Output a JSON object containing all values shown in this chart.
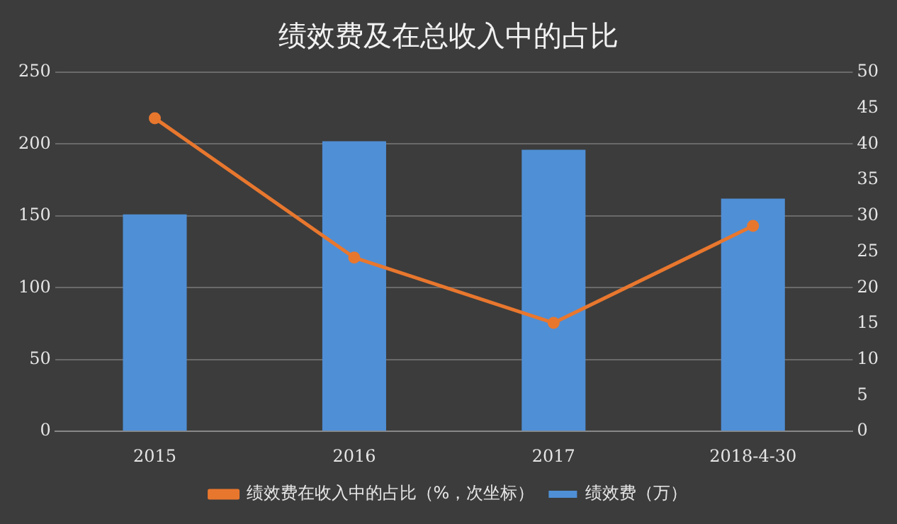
{
  "chart_data": {
    "type": "bar",
    "title": "绩效费及在总收入中的占比",
    "categories": [
      "2015",
      "2016",
      "2017",
      "2018-4-30"
    ],
    "series": [
      {
        "name": "绩效费（万）",
        "color": "#4f8fd6",
        "values": [
          151,
          202,
          196,
          162
        ]
      },
      {
        "name": "绩效费在收入中的占比（%，次坐标）",
        "type": "line",
        "axis": "y2",
        "color": "#e8772e",
        "values": [
          43.6,
          24.2,
          15.1,
          28.6
        ]
      }
    ],
    "ylim": [
      0,
      250
    ],
    "yticks": [
      0,
      50,
      100,
      150,
      200,
      250
    ],
    "y2lim": [
      0,
      50
    ],
    "y2ticks": [
      0,
      5,
      10,
      15,
      20,
      25,
      30,
      35,
      40,
      45,
      50
    ],
    "grid": "y",
    "legend": "bottom",
    "marker": "circle"
  }
}
